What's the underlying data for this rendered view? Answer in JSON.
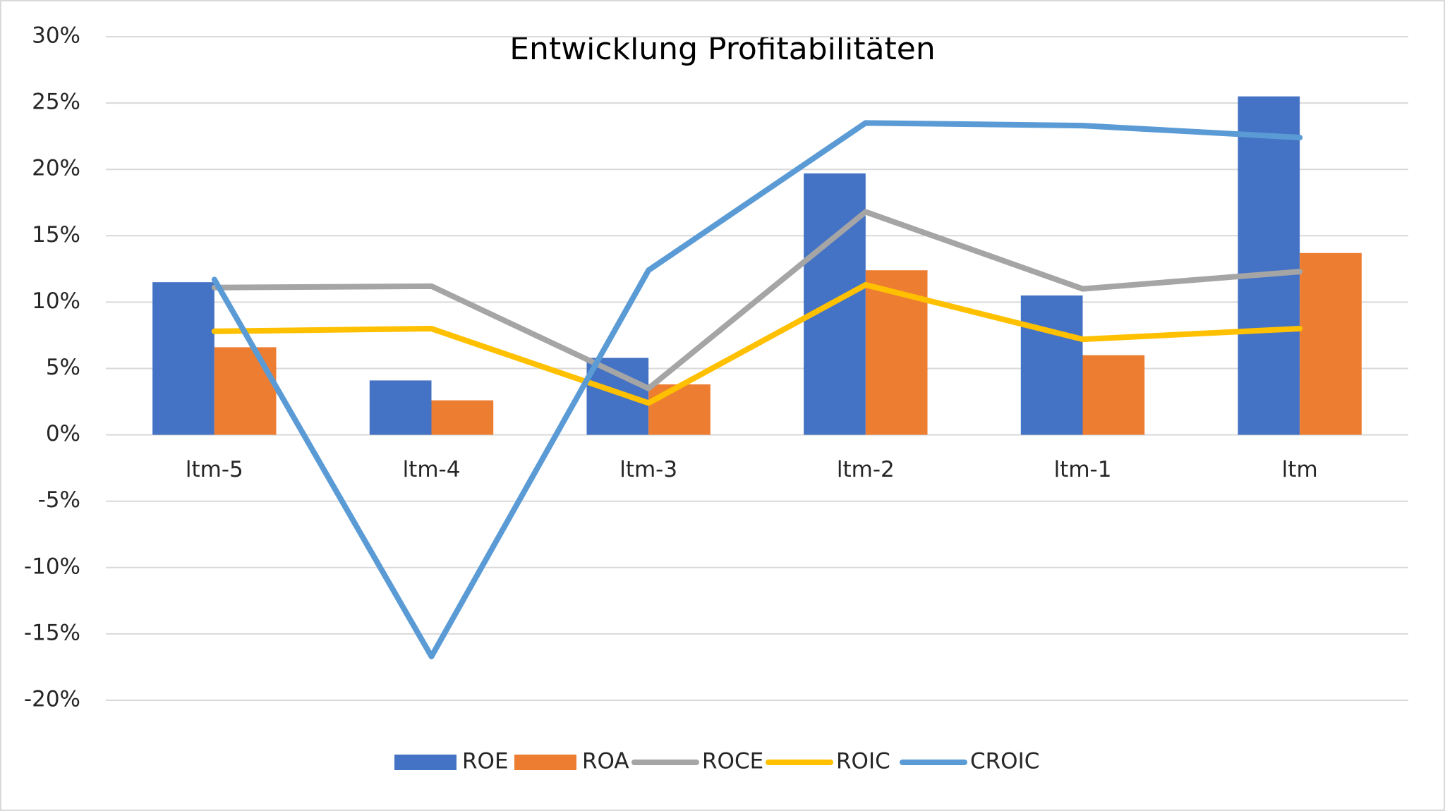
{
  "chart_data": {
    "type": "bar",
    "title": "Entwicklung Profitabilitäten",
    "categories": [
      "ltm-5",
      "ltm-4",
      "ltm-3",
      "ltm-2",
      "ltm-1",
      "ltm"
    ],
    "series": [
      {
        "name": "ROE",
        "type": "bar",
        "color": "#4472c4",
        "values": [
          11.5,
          4.1,
          5.8,
          19.7,
          10.5,
          25.5
        ]
      },
      {
        "name": "ROA",
        "type": "bar",
        "color": "#ed7d31",
        "values": [
          6.6,
          2.6,
          3.8,
          12.4,
          6.0,
          13.7
        ]
      },
      {
        "name": "ROCE",
        "type": "line",
        "color": "#a5a5a5",
        "values": [
          11.1,
          11.2,
          3.5,
          16.8,
          11.0,
          12.3
        ]
      },
      {
        "name": "ROIC",
        "type": "line",
        "color": "#ffc000",
        "values": [
          7.8,
          8.0,
          2.4,
          11.3,
          7.2,
          8.0
        ]
      },
      {
        "name": "CROIC",
        "type": "line",
        "color": "#5b9bd5",
        "values": [
          11.7,
          -16.7,
          12.4,
          23.5,
          23.3,
          22.4
        ]
      }
    ],
    "ylim": [
      -20,
      30
    ],
    "yticks": [
      {
        "value": -20,
        "label": "-20%"
      },
      {
        "value": -15,
        "label": "-15%"
      },
      {
        "value": -10,
        "label": "-10%"
      },
      {
        "value": -5,
        "label": "-5%"
      },
      {
        "value": 0,
        "label": "0%"
      },
      {
        "value": 5,
        "label": "5%"
      },
      {
        "value": 10,
        "label": "10%"
      },
      {
        "value": 15,
        "label": "15%"
      },
      {
        "value": 20,
        "label": "20%"
      },
      {
        "value": 25,
        "label": "25%"
      },
      {
        "value": 30,
        "label": "30%"
      }
    ],
    "grid": true,
    "legend": "bottom"
  }
}
